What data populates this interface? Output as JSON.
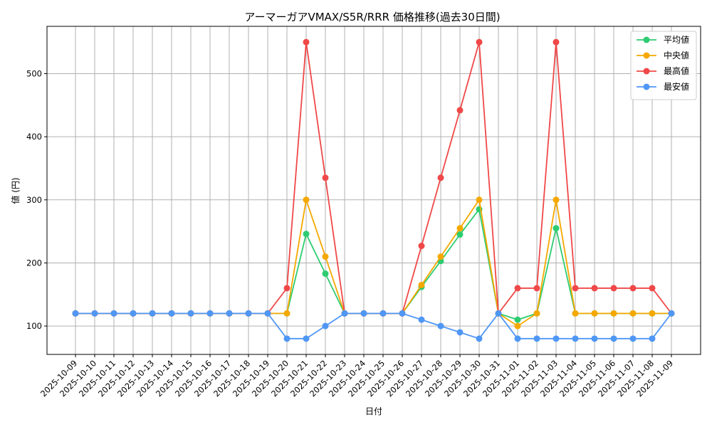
{
  "chart_data": {
    "type": "line",
    "title": "アーマーガアVMAX/S5R/RRR 価格推移(過去30日間)",
    "xlabel": "日付",
    "ylabel": "値 (円)",
    "ylim": [
      55,
      575
    ],
    "yticks": [
      100,
      200,
      300,
      400,
      500
    ],
    "grid": true,
    "legend_position": "top-right",
    "x": [
      "2025-10-09",
      "2025-10-10",
      "2025-10-11",
      "2025-10-12",
      "2025-10-13",
      "2025-10-14",
      "2025-10-15",
      "2025-10-16",
      "2025-10-17",
      "2025-10-18",
      "2025-10-19",
      "2025-10-20",
      "2025-10-21",
      "2025-10-22",
      "2025-10-23",
      "2025-10-24",
      "2025-10-25",
      "2025-10-26",
      "2025-10-27",
      "2025-10-28",
      "2025-10-29",
      "2025-10-30",
      "2025-10-31",
      "2025-11-01",
      "2025-11-02",
      "2025-11-03",
      "2025-11-04",
      "2025-11-05",
      "2025-11-06",
      "2025-11-07",
      "2025-11-08",
      "2025-11-09"
    ],
    "series": [
      {
        "name": "平均値",
        "color": "#2ecc71",
        "values": [
          120,
          120,
          120,
          120,
          120,
          120,
          120,
          120,
          120,
          120,
          120,
          120,
          246,
          183,
          120,
          120,
          120,
          120,
          162,
          203,
          245,
          285,
          120,
          110,
          120,
          255,
          120,
          120,
          120,
          120,
          120,
          120
        ]
      },
      {
        "name": "中央値",
        "color": "#f5a800",
        "values": [
          120,
          120,
          120,
          120,
          120,
          120,
          120,
          120,
          120,
          120,
          120,
          120,
          300,
          210,
          120,
          120,
          120,
          120,
          165,
          210,
          255,
          300,
          120,
          100,
          120,
          300,
          120,
          120,
          120,
          120,
          120,
          120
        ]
      },
      {
        "name": "最高値",
        "color": "#f04848",
        "values": [
          120,
          120,
          120,
          120,
          120,
          120,
          120,
          120,
          120,
          120,
          120,
          160,
          550,
          335,
          120,
          120,
          120,
          120,
          227,
          335,
          442,
          550,
          120,
          160,
          160,
          550,
          160,
          160,
          160,
          160,
          160,
          120
        ]
      },
      {
        "name": "最安値",
        "color": "#4f97f5",
        "values": [
          120,
          120,
          120,
          120,
          120,
          120,
          120,
          120,
          120,
          120,
          120,
          80,
          80,
          100,
          120,
          120,
          120,
          120,
          110,
          100,
          90,
          80,
          120,
          80,
          80,
          80,
          80,
          80,
          80,
          80,
          80,
          120
        ]
      }
    ]
  }
}
